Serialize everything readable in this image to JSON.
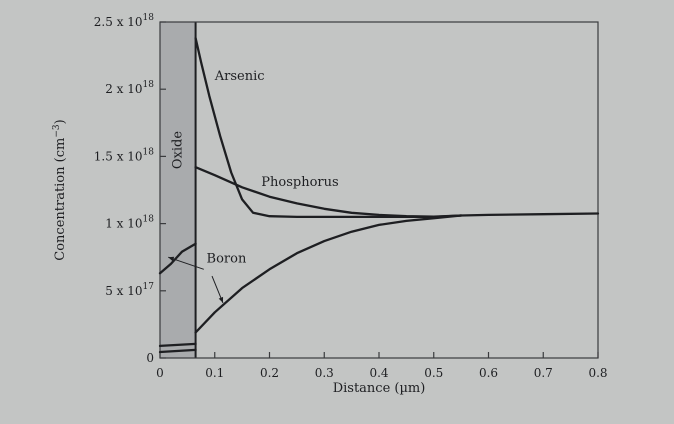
{
  "chart_data": {
    "type": "line",
    "xlabel": "Distance (µm)",
    "ylabel_base": "Concentration (cm",
    "ylabel_sup": "−3",
    "ylabel_end": ")",
    "xlim": [
      0,
      0.8
    ],
    "ylim": [
      0,
      2.5e+18
    ],
    "grid": false,
    "x_ticks": [
      {
        "value": 0,
        "label": "0"
      },
      {
        "value": 0.1,
        "label": "0.1"
      },
      {
        "value": 0.2,
        "label": "0.2"
      },
      {
        "value": 0.3,
        "label": "0.3"
      },
      {
        "value": 0.4,
        "label": "0.4"
      },
      {
        "value": 0.5,
        "label": "0.5"
      },
      {
        "value": 0.6,
        "label": "0.6"
      },
      {
        "value": 0.7,
        "label": "0.7"
      },
      {
        "value": 0.8,
        "label": "0.8"
      }
    ],
    "y_ticks": [
      {
        "value": 0,
        "base": "0",
        "exp": ""
      },
      {
        "value": 5e+17,
        "base": "5 x 10",
        "exp": "17"
      },
      {
        "value": 1e+18,
        "base": "1 x 10",
        "exp": "18"
      },
      {
        "value": 1.5e+18,
        "base": "1.5 x 10",
        "exp": "18"
      },
      {
        "value": 2e+18,
        "base": "2 x 10",
        "exp": "18"
      },
      {
        "value": 2.5e+18,
        "base": "2.5 x 10",
        "exp": "18"
      }
    ],
    "oxide": {
      "x_start": 0,
      "x_end": 0.065,
      "label": "Oxide"
    },
    "series": [
      {
        "name": "Arsenic",
        "x": [
          0.065,
          0.075,
          0.09,
          0.11,
          0.13,
          0.15,
          0.17,
          0.2,
          0.25,
          0.3,
          0.4,
          0.5,
          0.55
        ],
        "y": [
          2.38e+18,
          2.2e+18,
          1.95e+18,
          1.65e+18,
          1.38e+18,
          1.18e+18,
          1.08e+18,
          1.055e+18,
          1.05e+18,
          1.05e+18,
          1.05e+18,
          1.05e+18,
          1.06e+18
        ]
      },
      {
        "name": "Phosphorus",
        "x": [
          0.065,
          0.1,
          0.15,
          0.2,
          0.25,
          0.3,
          0.35,
          0.4,
          0.45,
          0.5,
          0.55
        ],
        "y": [
          1.42e+18,
          1.36e+18,
          1.27e+18,
          1.2e+18,
          1.15e+18,
          1.11e+18,
          1.08e+18,
          1.065e+18,
          1.055e+18,
          1.052e+18,
          1.06e+18
        ]
      },
      {
        "name": "Boron",
        "x": [
          0.065,
          0.1,
          0.15,
          0.2,
          0.25,
          0.3,
          0.35,
          0.4,
          0.45,
          0.5,
          0.55
        ],
        "y": [
          1.9e+17,
          3.4e+17,
          5.2e+17,
          6.6e+17,
          7.8e+17,
          8.7e+17,
          9.4e+17,
          9.9e+17,
          1.02e+18,
          1.04e+18,
          1.06e+18
        ]
      },
      {
        "name": "Bulk",
        "x": [
          0.55,
          0.6,
          0.7,
          0.8
        ],
        "y": [
          1.06e+18,
          1.065e+18,
          1.07e+18,
          1.075e+18
        ]
      },
      {
        "name": "Boron (oxide)",
        "x": [
          0,
          0.02,
          0.04,
          0.065
        ],
        "y": [
          6.3e+17,
          7e+17,
          7.9e+17,
          8.5e+17
        ]
      },
      {
        "name": "Oxide low 1",
        "x": [
          0,
          0.065
        ],
        "y": [
          9e+16,
          1.05e+17
        ]
      },
      {
        "name": "Oxide low 2",
        "x": [
          0,
          0.065
        ],
        "y": [
          4.5e+16,
          6e+16
        ]
      }
    ],
    "labels": [
      {
        "text": "Arsenic",
        "x": 0.1,
        "y": 2.07e+18,
        "series": "Arsenic"
      },
      {
        "text": "Phosphorus",
        "x": 0.185,
        "y": 1.28e+18,
        "series": "Phosphorus"
      },
      {
        "text": "Boron",
        "x": 0.085,
        "y": 7.1e+17,
        "series": "Boron"
      }
    ],
    "annotations": [
      {
        "from": [
          0.08,
          6.6e+17
        ],
        "to": [
          0.015,
          7.5e+17
        ]
      },
      {
        "from": [
          0.095,
          6.1e+17
        ],
        "to": [
          0.115,
          4.1e+17
        ]
      }
    ]
  }
}
